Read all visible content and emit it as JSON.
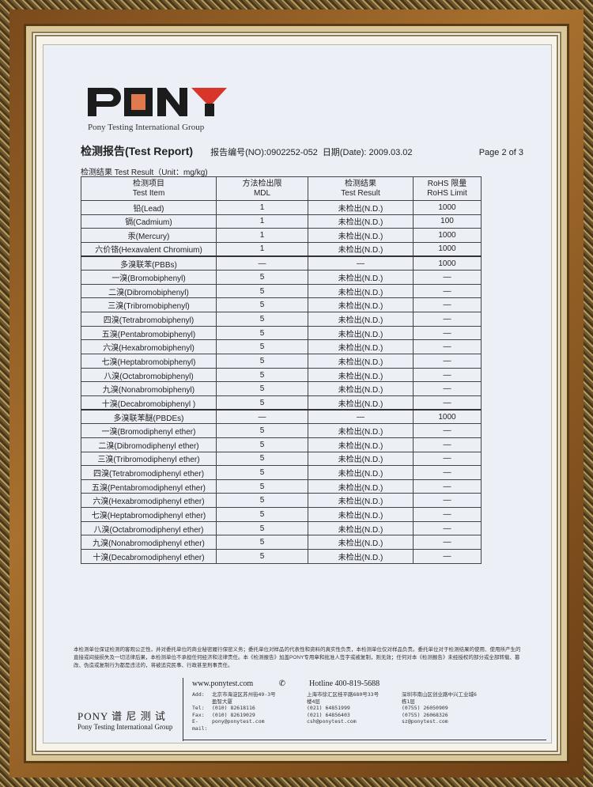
{
  "logo": {
    "text": "PONY",
    "subtitle": "Pony Testing International Group"
  },
  "header": {
    "title": "检测报告(Test Report)",
    "report_no": "报告编号(NO):0902252-052",
    "date": "日期(Date): 2009.03.02",
    "page": "Page 2 of 3"
  },
  "unit_label": "检测结果 Test Result（Unit：mg/kg)",
  "table": {
    "columns": [
      [
        "检测项目",
        "Test Item"
      ],
      [
        "方法检出限",
        "MDL"
      ],
      [
        "检测结果",
        "Test Result"
      ],
      [
        "RoHS 限量",
        "RoHS Limit"
      ]
    ],
    "rows": [
      [
        "铅(Lead)",
        "1",
        "未检出(N.D.)",
        "1000"
      ],
      [
        "镉(Cadmium)",
        "1",
        "未检出(N.D.)",
        "100"
      ],
      [
        "汞(Mercury)",
        "1",
        "未检出(N.D.)",
        "1000"
      ],
      [
        "六价铬(Hexavalent Chromium)",
        "1",
        "未检出(N.D.)",
        "1000"
      ],
      [
        "多溴联苯(PBBs)",
        "—",
        "—",
        "1000"
      ],
      [
        "一溴(Bromobiphenyl)",
        "5",
        "未检出(N.D.)",
        "—"
      ],
      [
        "二溴(Dibromobiphenyl)",
        "5",
        "未检出(N.D.)",
        "—"
      ],
      [
        "三溴(Tribromobiphenyl)",
        "5",
        "未检出(N.D.)",
        "—"
      ],
      [
        "四溴(Tetrabromobiphenyl)",
        "5",
        "未检出(N.D.)",
        "—"
      ],
      [
        "五溴(Pentabromobiphenyl)",
        "5",
        "未检出(N.D.)",
        "—"
      ],
      [
        "六溴(Hexabromobiphenyl)",
        "5",
        "未检出(N.D.)",
        "—"
      ],
      [
        "七溴(Heptabromobiphenyl)",
        "5",
        "未检出(N.D.)",
        "—"
      ],
      [
        "八溴(Octabromobiphenyl)",
        "5",
        "未检出(N.D.)",
        "—"
      ],
      [
        "九溴(Nonabromobiphenyl)",
        "5",
        "未检出(N.D.)",
        "—"
      ],
      [
        "十溴(Decabromobiphenyl )",
        "5",
        "未检出(N.D.)",
        "—"
      ],
      [
        "多溴联苯醚(PBDEs)",
        "—",
        "—",
        "1000"
      ],
      [
        "一溴(Bromodiphenyl ether)",
        "5",
        "未检出(N.D.)",
        "—"
      ],
      [
        "二溴(Dibromodiphenyl ether)",
        "5",
        "未检出(N.D.)",
        "—"
      ],
      [
        "三溴(Tribromodiphenyl ether)",
        "5",
        "未检出(N.D.)",
        "—"
      ],
      [
        "四溴(Tetrabromodiphenyl ether)",
        "5",
        "未检出(N.D.)",
        "—"
      ],
      [
        "五溴(Pentabromodiphenyl ether)",
        "5",
        "未检出(N.D.)",
        "—"
      ],
      [
        "六溴(Hexabromodiphenyl ether)",
        "5",
        "未检出(N.D.)",
        "—"
      ],
      [
        "七溴(Heptabromodiphenyl ether)",
        "5",
        "未检出(N.D.)",
        "—"
      ],
      [
        "八溴(Octabromodiphenyl ether)",
        "5",
        "未检出(N.D.)",
        "—"
      ],
      [
        "九溴(Nonabromodiphenyl ether)",
        "5",
        "未检出(N.D.)",
        "—"
      ],
      [
        "十溴(Decabromodiphenyl ether)",
        "5",
        "未检出(N.D.)",
        "—"
      ]
    ]
  },
  "disclaimer": "本检测单位保证检测的客观公正性，并对委托单位的商业秘密履行保密义务；委托单位对样品的代表性和资料的真实性负责，本检测单位仅对样品负责。委托单位对于检测结果的使用、使用所产生的直接或间接损失及一切法律后果，本检测单位不承担任何经济和法律责任。本《检测报告》加盖PONY专用章和批准人签字或被复制，则无效；任何对本《检测报告》未经授权的部分或全部转载、篡改、伪造或复制行为都是违法的，将被追究民事、行政甚至刑事责任。",
  "footer": {
    "brand": "PONY 谱 尼 测 试",
    "brand_sub": "Pony Testing International Group",
    "website": "www.ponytest.com",
    "hotline": "Hotline 400-819-5688",
    "labels": [
      "Add:",
      "",
      "Tel:",
      "Fax:",
      "E-mail:"
    ],
    "offices": [
      {
        "add1": "北京市海淀区苏州街49-3号",
        "add2": "盈智大厦",
        "tel": "(010) 82618116",
        "fax": "(010) 82619029",
        "email": "pony@ponytest.com"
      },
      {
        "add1": "上海市徐汇区桂平路680号33号",
        "add2": "楼4层",
        "tel": "(021) 64851999",
        "fax": "(021) 64856403",
        "email": "csh@ponytest.com"
      },
      {
        "add1": "深圳市南山区创业路中兴工业城6",
        "add2": "栋1层",
        "tel": "(0755) 26050909",
        "fax": "(0755) 26068326",
        "email": "sz@ponytest.com"
      }
    ]
  },
  "colors": {
    "logo_red": "#d8362b",
    "logo_orange": "#e07a4e",
    "paper": "#eceff6",
    "frame": "#8a5a24"
  }
}
